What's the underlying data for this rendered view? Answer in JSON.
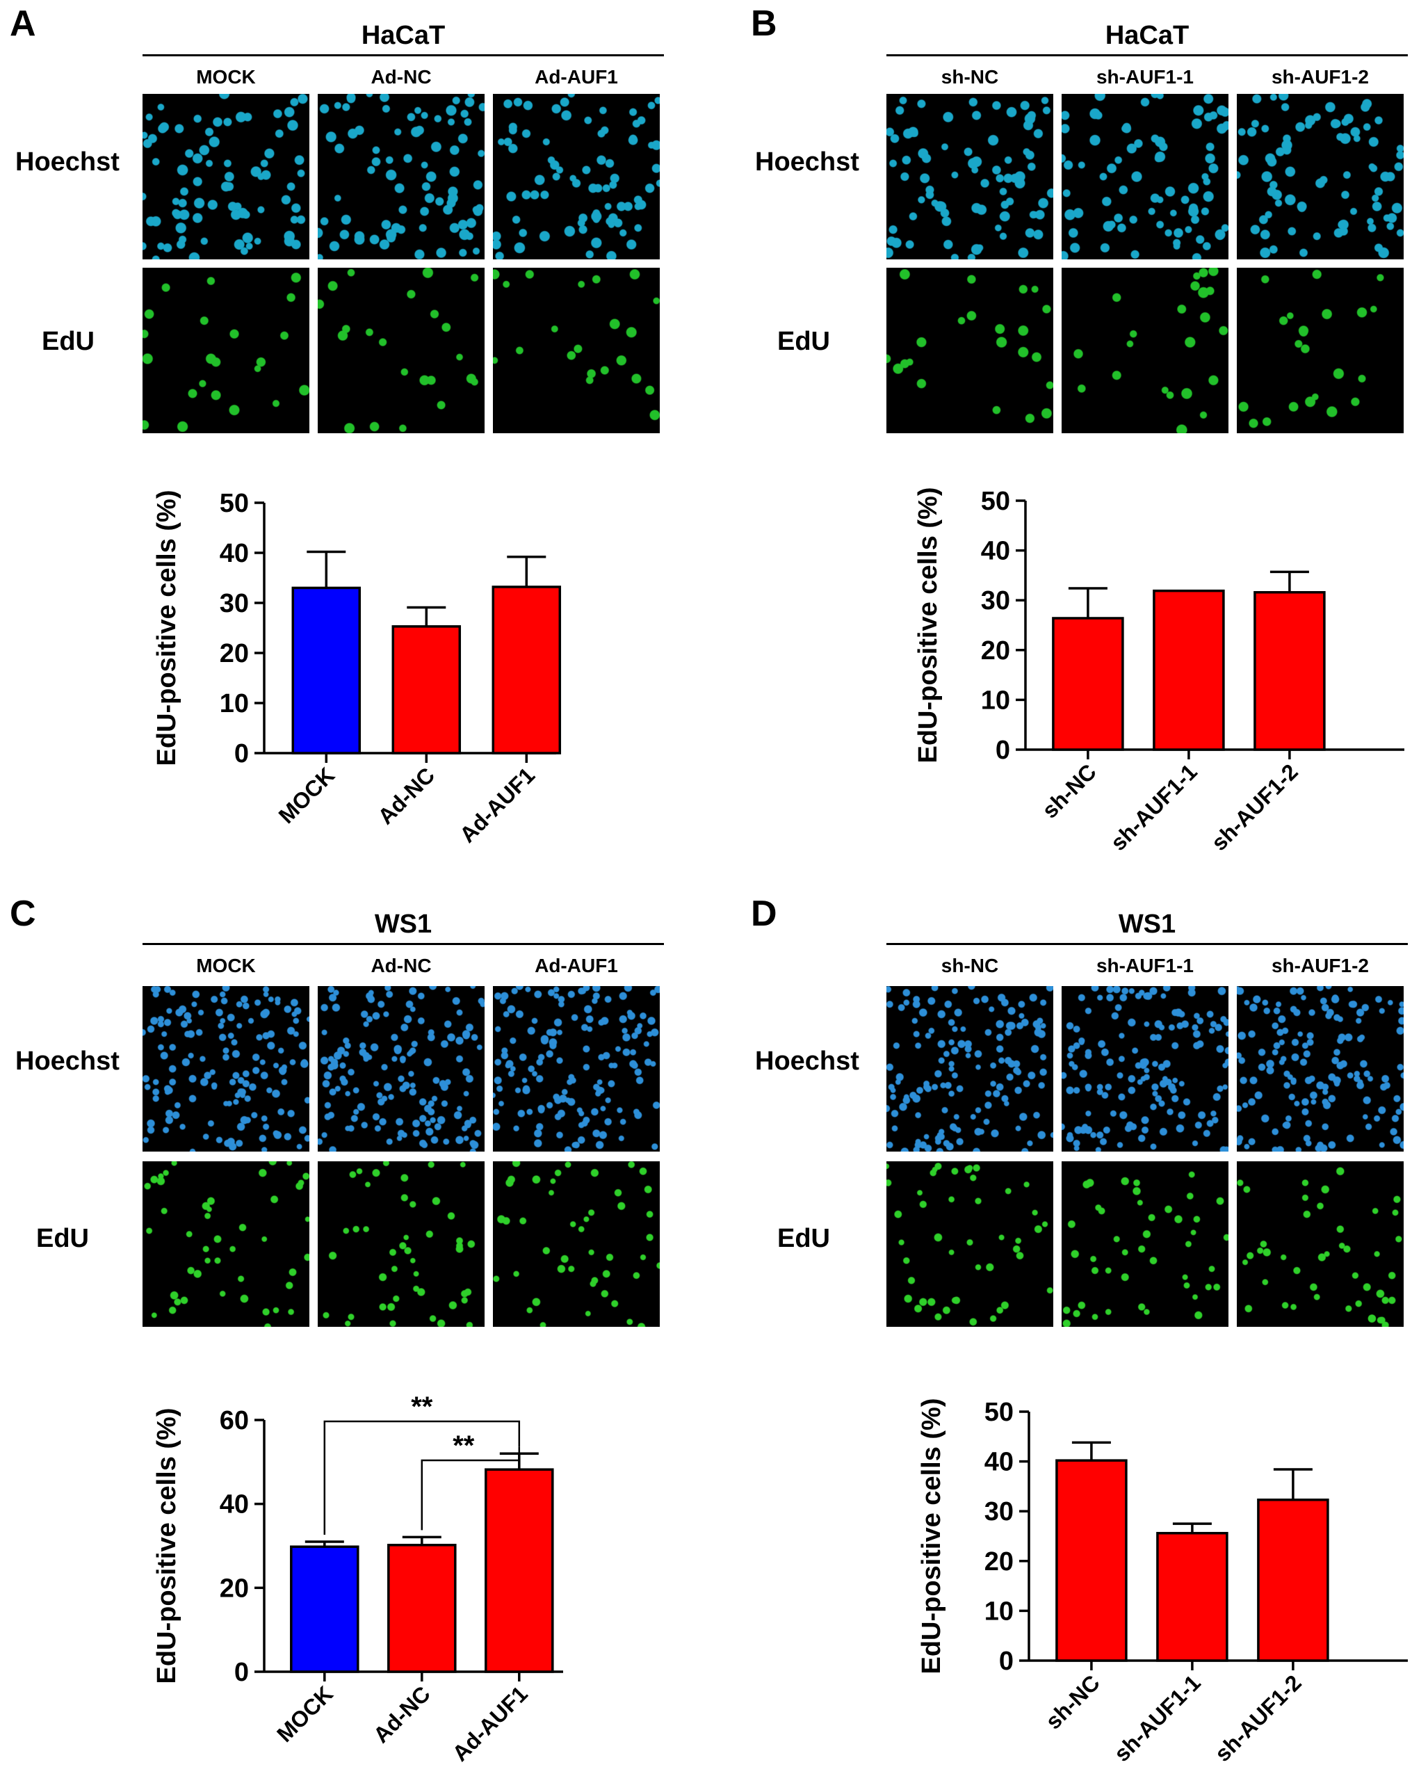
{
  "panels": [
    {
      "label": "A",
      "cell_line": "HaCaT",
      "conditions": [
        "MOCK",
        "Ad-NC",
        "Ad-AUF1"
      ],
      "rows": [
        "Hoechst",
        "EdU"
      ],
      "stain_colors": {
        "Hoechst": "#1aa7c9",
        "EdU": "#22c02a"
      }
    },
    {
      "label": "B",
      "cell_line": "HaCaT",
      "conditions": [
        "sh-NC",
        "sh-AUF1-1",
        "sh-AUF1-2"
      ],
      "rows": [
        "Hoechst",
        "EdU"
      ],
      "stain_colors": {
        "Hoechst": "#1aa7c9",
        "EdU": "#22c02a"
      }
    },
    {
      "label": "C",
      "cell_line": "WS1",
      "conditions": [
        "MOCK",
        "Ad-NC",
        "Ad-AUF1"
      ],
      "rows": [
        "Hoechst",
        "EdU"
      ],
      "stain_colors": {
        "Hoechst": "#2d8fd8",
        "EdU": "#2fd02a"
      }
    },
    {
      "label": "D",
      "cell_line": "WS1",
      "conditions": [
        "sh-NC",
        "sh-AUF1-1",
        "sh-AUF1-2"
      ],
      "rows": [
        "Hoechst",
        "EdU"
      ],
      "stain_colors": {
        "Hoechst": "#2d8fd8",
        "EdU": "#2fd02a"
      }
    }
  ],
  "chart_data": [
    {
      "panel": "A",
      "type": "bar",
      "categories": [
        "MOCK",
        "Ad-NC",
        "Ad-AUF1"
      ],
      "values": [
        33,
        25.3,
        33.2
      ],
      "errors": [
        7.2,
        3.8,
        6.0
      ],
      "colors": [
        "#0000ff",
        "#ff0000",
        "#ff0000"
      ],
      "ylabel": "EdU-positive cells (%)",
      "ylim": [
        0,
        50
      ],
      "yticks": [
        0,
        10,
        20,
        30,
        40,
        50
      ],
      "significance": []
    },
    {
      "panel": "B",
      "type": "bar",
      "categories": [
        "sh-NC",
        "sh-AUF1-1",
        "sh-AUF1-2"
      ],
      "values": [
        26.4,
        31.9,
        31.6
      ],
      "errors": [
        6.0,
        0,
        4.1
      ],
      "colors": [
        "#ff0000",
        "#ff0000",
        "#ff0000"
      ],
      "ylabel": "EdU-positive cells (%)",
      "ylim": [
        0,
        50
      ],
      "yticks": [
        0,
        10,
        20,
        30,
        40,
        50
      ],
      "significance": []
    },
    {
      "panel": "C",
      "type": "bar",
      "categories": [
        "MOCK",
        "Ad-NC",
        "Ad-AUF1"
      ],
      "values": [
        29.8,
        30.2,
        48.2
      ],
      "errors": [
        1.2,
        1.9,
        3.8
      ],
      "colors": [
        "#0000ff",
        "#ff0000",
        "#ff0000"
      ],
      "ylabel": "EdU-positive cells (%)",
      "ylim": [
        0,
        60
      ],
      "yticks": [
        0,
        20,
        40,
        60
      ],
      "significance": [
        {
          "from": 0,
          "to": 2,
          "label": "**",
          "level": 2
        },
        {
          "from": 1,
          "to": 2,
          "label": "**",
          "level": 1
        }
      ]
    },
    {
      "panel": "D",
      "type": "bar",
      "categories": [
        "sh-NC",
        "sh-AUF1-1",
        "sh-AUF1-2"
      ],
      "values": [
        40.2,
        25.6,
        32.3
      ],
      "errors": [
        3.6,
        1.9,
        6.1
      ],
      "colors": [
        "#ff0000",
        "#ff0000",
        "#ff0000"
      ],
      "ylabel": "EdU-positive cells (%)",
      "ylim": [
        0,
        50
      ],
      "yticks": [
        0,
        10,
        20,
        30,
        40,
        50
      ],
      "significance": []
    }
  ]
}
